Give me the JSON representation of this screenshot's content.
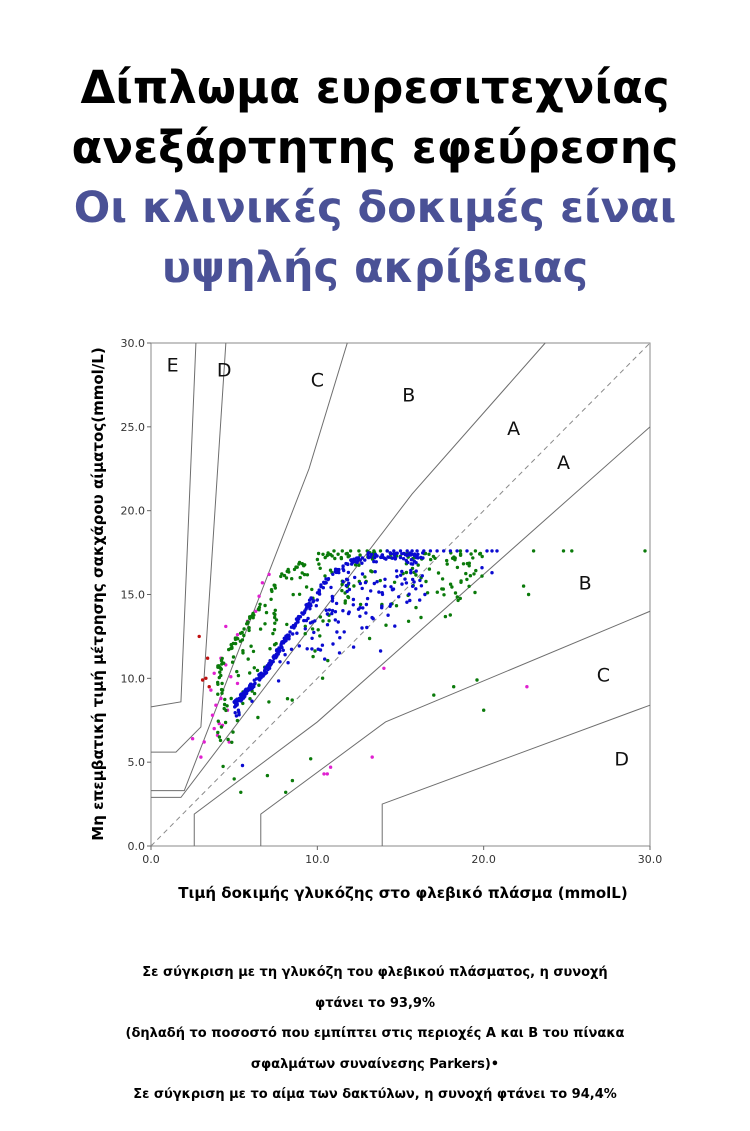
{
  "header": {
    "title_lines": [
      "Δίπλωμα ευρεσιτεχνίας",
      "ανεξάρτητης εφεύρεσης"
    ],
    "subtitle_lines": [
      "Οι κλινικές δοκιμές είναι",
      "υψηλής ακρίβειας"
    ]
  },
  "chart_data": {
    "type": "scatter",
    "title": "",
    "xlabel": "Τιμή δοκιμής γλυκόζης στο φλεβικό πλάσμα (mmolL)",
    "ylabel": "Μη επεμβατική τιμή μέτρησης σακχάρου αίματος(mmol/L)",
    "xlim": [
      0,
      30
    ],
    "ylim": [
      0,
      30
    ],
    "x_ticks": [
      "0.0",
      "10.0",
      "20.0",
      "30.0"
    ],
    "y_ticks": [
      "0.0",
      "5.0",
      "10.0",
      "15.0",
      "20.0",
      "25.0",
      "30.0"
    ],
    "grid": false,
    "legend": "none",
    "region_labels": [
      {
        "text": "E",
        "x": 1.3,
        "y": 28.3
      },
      {
        "text": "D",
        "x": 4.4,
        "y": 28.0
      },
      {
        "text": "C",
        "x": 10.0,
        "y": 27.4
      },
      {
        "text": "B",
        "x": 15.5,
        "y": 26.5
      },
      {
        "text": "A",
        "x": 21.8,
        "y": 24.5
      },
      {
        "text": "A",
        "x": 24.8,
        "y": 22.5
      },
      {
        "text": "B",
        "x": 26.1,
        "y": 15.3
      },
      {
        "text": "C",
        "x": 27.2,
        "y": 9.8
      },
      {
        "text": "D",
        "x": 28.3,
        "y": 4.8
      }
    ],
    "zone_boundaries": [
      [
        [
          0,
          8.3
        ],
        [
          1.8,
          8.6
        ],
        [
          2.7,
          30
        ]
      ],
      [
        [
          0,
          5.6
        ],
        [
          1.5,
          5.6
        ],
        [
          3,
          7.1
        ],
        [
          4.5,
          30
        ]
      ],
      [
        [
          0,
          3.3
        ],
        [
          2,
          3.3
        ],
        [
          9.5,
          22.5
        ],
        [
          11.8,
          30
        ]
      ],
      [
        [
          0,
          2.9
        ],
        [
          1.8,
          2.9
        ],
        [
          15.7,
          21
        ],
        [
          23.7,
          30
        ]
      ],
      [
        [
          2.6,
          0
        ],
        [
          2.6,
          1.9
        ],
        [
          10,
          7.4
        ],
        [
          30,
          25
        ]
      ],
      [
        [
          6.6,
          0
        ],
        [
          6.6,
          1.9
        ],
        [
          14.1,
          7.4
        ],
        [
          30,
          14
        ]
      ],
      [
        [
          13.9,
          0
        ],
        [
          13.9,
          2.5
        ],
        [
          30,
          8.4
        ]
      ]
    ],
    "identity_line": [
      [
        0,
        0
      ],
      [
        30,
        30
      ]
    ],
    "series": [
      {
        "color": "#c01010",
        "points": [
          [
            2.9,
            12.5
          ],
          [
            3.4,
            11.2
          ],
          [
            3.3,
            10.0
          ],
          [
            3.1,
            9.9
          ],
          [
            3.5,
            9.5
          ]
        ]
      },
      {
        "color": "#e020d0",
        "points": [
          [
            7.1,
            16.2
          ],
          [
            6.7,
            15.7
          ],
          [
            6.5,
            14.9
          ],
          [
            6.3,
            14.0
          ],
          [
            5.8,
            13.4
          ],
          [
            4.5,
            13.1
          ],
          [
            5.2,
            12.6
          ],
          [
            4.2,
            11.2
          ],
          [
            4.5,
            10.8
          ],
          [
            3.8,
            10.3
          ],
          [
            4.8,
            10.1
          ],
          [
            5.2,
            9.7
          ],
          [
            3.6,
            9.3
          ],
          [
            4.2,
            8.8
          ],
          [
            3.9,
            8.4
          ],
          [
            4.6,
            8.1
          ],
          [
            3.7,
            7.8
          ],
          [
            4.1,
            7.3
          ],
          [
            3.8,
            7.0
          ],
          [
            4.3,
            7.2
          ],
          [
            4.0,
            6.6
          ],
          [
            4.7,
            6.2
          ],
          [
            2.5,
            6.4
          ],
          [
            3.2,
            6.2
          ],
          [
            3.0,
            5.3
          ],
          [
            10.8,
            4.7
          ],
          [
            10.6,
            4.3
          ],
          [
            10.4,
            4.3
          ],
          [
            13.3,
            5.3
          ],
          [
            22.6,
            9.5
          ],
          [
            14.0,
            10.6
          ]
        ]
      },
      {
        "color": "#0a7a0a",
        "spread": [
          [
            4.0,
            3.5,
            10.8,
            9.2
          ],
          [
            6.0,
            4.5,
            13.8,
            12.6
          ],
          [
            8.0,
            5.8,
            16.5,
            14.9
          ],
          [
            10.0,
            6.8,
            17.5,
            16.4
          ],
          [
            12.0,
            8.0,
            17.5,
            16.5
          ],
          [
            14.0,
            9.5,
            17.5,
            16.4
          ],
          [
            16.0,
            11.0,
            17.5,
            16.5
          ],
          [
            18.0,
            12.5,
            17.5,
            16.5
          ],
          [
            20.0,
            13.8,
            17.5,
            16.6
          ]
        ],
        "count": 300,
        "points": [
          [
            11.0,
            17.6
          ],
          [
            11.5,
            17.6
          ],
          [
            12.0,
            17.6
          ],
          [
            12.5,
            17.6
          ],
          [
            13.0,
            17.6
          ],
          [
            13.4,
            17.6
          ],
          [
            13.8,
            17.6
          ],
          [
            14.2,
            17.6
          ],
          [
            18.6,
            17.6
          ],
          [
            19.5,
            17.6
          ],
          [
            23.0,
            17.6
          ],
          [
            24.8,
            17.6
          ],
          [
            25.3,
            17.6
          ],
          [
            29.7,
            17.6
          ],
          [
            22.4,
            15.5
          ],
          [
            22.7,
            15.0
          ],
          [
            19.6,
            9.9
          ],
          [
            20.0,
            8.1
          ],
          [
            18.2,
            9.5
          ],
          [
            17.0,
            9.0
          ],
          [
            8.1,
            3.2
          ],
          [
            8.5,
            3.9
          ],
          [
            5.4,
            3.2
          ],
          [
            7.0,
            4.2
          ],
          [
            5.0,
            4.0
          ],
          [
            9.6,
            5.2
          ]
        ]
      },
      {
        "color": "#0a0ad0",
        "spread": [
          [
            5.0,
            4.2,
            8.6,
            8.8
          ],
          [
            7.0,
            5.8,
            10.8,
            13.6
          ],
          [
            9.0,
            6.9,
            14.0,
            14.2
          ],
          [
            11.0,
            7.9,
            16.6,
            15.6
          ],
          [
            13.0,
            9.5,
            17.5,
            16.2
          ],
          [
            15.0,
            11.2,
            17.5,
            17.0
          ],
          [
            16.5,
            12.8,
            17.5,
            17.3
          ]
        ],
        "count": 430,
        "points": [
          [
            14.2,
            17.6
          ],
          [
            14.6,
            17.6
          ],
          [
            15.0,
            17.6
          ],
          [
            15.4,
            17.6
          ],
          [
            15.7,
            17.6
          ],
          [
            16.0,
            17.6
          ],
          [
            16.4,
            17.6
          ],
          [
            16.8,
            17.6
          ],
          [
            17.2,
            17.6
          ],
          [
            17.6,
            17.6
          ],
          [
            18.0,
            17.6
          ],
          [
            18.4,
            17.6
          ],
          [
            19.0,
            17.6
          ],
          [
            20.2,
            17.6
          ],
          [
            20.5,
            17.6
          ],
          [
            20.8,
            17.6
          ],
          [
            20.5,
            16.3
          ],
          [
            19.9,
            16.6
          ],
          [
            5.5,
            4.8
          ]
        ]
      }
    ]
  },
  "notes": [
    "Σε σύγκριση με τη γλυκόζη του φλεβικού πλάσματος, η συνοχή",
    "φτάνει το 93,9%",
    "(δηλαδή το ποσοστό που εμπίπτει στις περιοχές Α και Β του πίνακα",
    "σφαλμάτων συναίνεσης Parkers)•",
    "Σε σύγκριση με το αίμα των δακτύλων, η συνοχή φτάνει το 94,4%"
  ]
}
